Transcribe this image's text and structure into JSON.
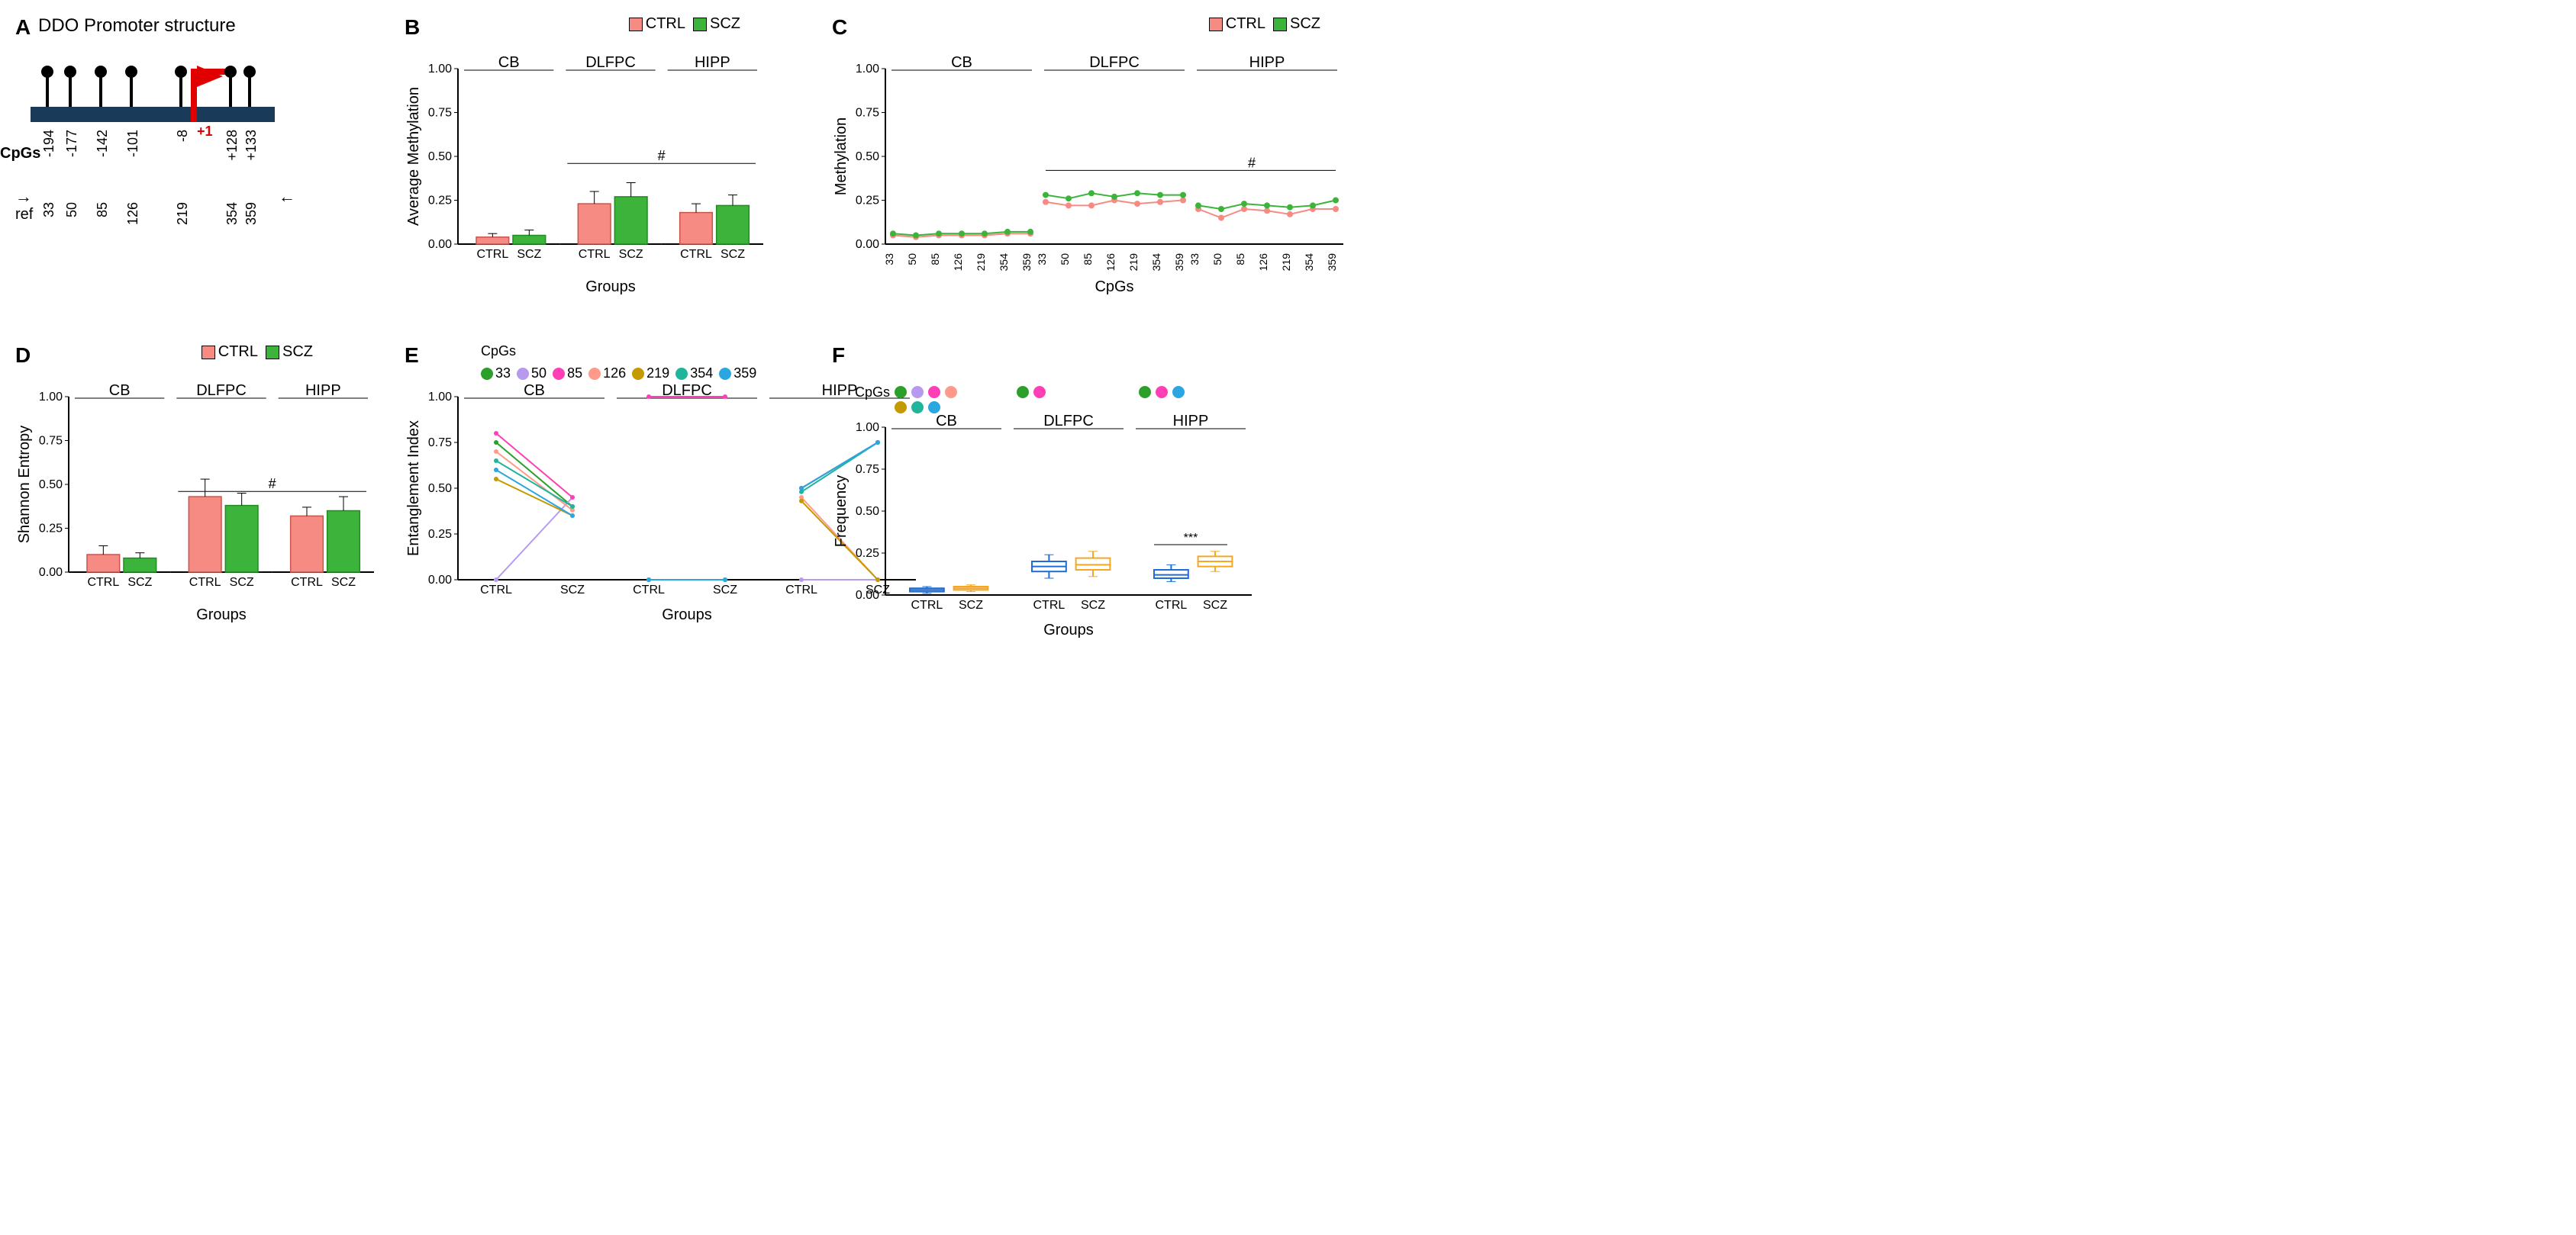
{
  "colors": {
    "ctrl": "#f58b82",
    "scz": "#3cb43c",
    "ctrl_stroke": "#c9544c",
    "scz_stroke": "#228b22",
    "ctrl_box": "#1e6dd6",
    "scz_box": "#f5a623"
  },
  "cpg_colors": {
    "33": "#2aa02a",
    "50": "#b799f0",
    "85": "#ff3fb5",
    "126": "#ff9a8b",
    "219": "#c49a00",
    "354": "#1fb59a",
    "359": "#2aa7e0"
  },
  "regions": [
    "CB",
    "DLFPC",
    "HIPP"
  ],
  "groups": [
    "CTRL",
    "SCZ"
  ],
  "cpg_sites": [
    "33",
    "50",
    "85",
    "126",
    "219",
    "354",
    "359"
  ],
  "panelA": {
    "label": "A",
    "title": "DDO Promoter structure",
    "cpg_positions": [
      "-194",
      "-177",
      "-142",
      "-101",
      "-8",
      "+128",
      "+133"
    ],
    "ref_positions": [
      "33",
      "50",
      "85",
      "126",
      "219",
      "354",
      "359"
    ],
    "tss": "+1",
    "cpgs_label": "CpGs",
    "ref_label": "ref"
  },
  "panelB": {
    "label": "B",
    "ylabel": "Average Methylation",
    "xlabel": "Groups",
    "ylim": [
      0,
      1
    ],
    "yticks": [
      0.0,
      0.25,
      0.5,
      0.75,
      1.0
    ],
    "bars": [
      {
        "region": "CB",
        "group": "CTRL",
        "value": 0.04,
        "sd": 0.02
      },
      {
        "region": "CB",
        "group": "SCZ",
        "value": 0.05,
        "sd": 0.03
      },
      {
        "region": "DLFPC",
        "group": "CTRL",
        "value": 0.23,
        "sd": 0.07
      },
      {
        "region": "DLFPC",
        "group": "SCZ",
        "value": 0.27,
        "sd": 0.08
      },
      {
        "region": "HIPP",
        "group": "CTRL",
        "value": 0.18,
        "sd": 0.05
      },
      {
        "region": "HIPP",
        "group": "SCZ",
        "value": 0.22,
        "sd": 0.06
      }
    ],
    "annot": "#"
  },
  "panelC": {
    "label": "C",
    "ylabel": "Methylation",
    "xlabel": "CpGs",
    "ylim": [
      0,
      1
    ],
    "yticks": [
      0.0,
      0.25,
      0.5,
      0.75,
      1.0
    ],
    "lines": {
      "CB": {
        "CTRL": [
          0.05,
          0.04,
          0.05,
          0.05,
          0.05,
          0.06,
          0.06
        ],
        "SCZ": [
          0.06,
          0.05,
          0.06,
          0.06,
          0.06,
          0.07,
          0.07
        ]
      },
      "DLFPC": {
        "CTRL": [
          0.24,
          0.22,
          0.22,
          0.25,
          0.23,
          0.24,
          0.25
        ],
        "SCZ": [
          0.28,
          0.26,
          0.29,
          0.27,
          0.29,
          0.28,
          0.28
        ]
      },
      "HIPP": {
        "CTRL": [
          0.2,
          0.15,
          0.2,
          0.19,
          0.17,
          0.2,
          0.2
        ],
        "SCZ": [
          0.22,
          0.2,
          0.23,
          0.22,
          0.21,
          0.22,
          0.25
        ]
      }
    },
    "annot": "#"
  },
  "panelD": {
    "label": "D",
    "ylabel": "Shannon Entropy",
    "xlabel": "Groups",
    "ylim": [
      0,
      1
    ],
    "yticks": [
      0.0,
      0.25,
      0.5,
      0.75,
      1.0
    ],
    "bars": [
      {
        "region": "CB",
        "group": "CTRL",
        "value": 0.1,
        "sd": 0.05
      },
      {
        "region": "CB",
        "group": "SCZ",
        "value": 0.08,
        "sd": 0.03
      },
      {
        "region": "DLFPC",
        "group": "CTRL",
        "value": 0.43,
        "sd": 0.1
      },
      {
        "region": "DLFPC",
        "group": "SCZ",
        "value": 0.38,
        "sd": 0.07
      },
      {
        "region": "HIPP",
        "group": "CTRL",
        "value": 0.32,
        "sd": 0.05
      },
      {
        "region": "HIPP",
        "group": "SCZ",
        "value": 0.35,
        "sd": 0.08
      }
    ],
    "annot": "#"
  },
  "panelE": {
    "label": "E",
    "ylabel": "Entanglement Index",
    "xlabel": "Groups",
    "ylim": [
      0,
      1
    ],
    "yticks": [
      0.0,
      0.25,
      0.5,
      0.75,
      1.0
    ],
    "legend_label": "CpGs",
    "lines": {
      "CB": {
        "33": [
          0.75,
          0.4
        ],
        "50": [
          0.0,
          0.45
        ],
        "85": [
          0.8,
          0.45
        ],
        "126": [
          0.7,
          0.38
        ],
        "219": [
          0.55,
          0.35
        ],
        "354": [
          0.65,
          0.4
        ],
        "359": [
          0.6,
          0.35
        ]
      },
      "DLFPC": {
        "33": [
          0.0,
          0.0
        ],
        "50": [
          0.0,
          0.0
        ],
        "85": [
          1.0,
          1.0
        ],
        "126": [
          0.0,
          0.0
        ],
        "219": [
          0.0,
          0.0
        ],
        "354": [
          0.0,
          0.0
        ],
        "359": [
          0.0,
          0.0
        ]
      },
      "HIPP": {
        "33": [
          0.5,
          0.75
        ],
        "50": [
          0.0,
          0.0
        ],
        "85": [
          0.5,
          0.75
        ],
        "126": [
          0.45,
          0.0
        ],
        "219": [
          0.43,
          0.0
        ],
        "354": [
          0.48,
          0.75
        ],
        "359": [
          0.5,
          0.75
        ]
      }
    }
  },
  "panelF": {
    "label": "F",
    "ylabel": "Frequency",
    "xlabel": "Groups",
    "legend_label": "CpGs",
    "ylim": [
      0,
      1
    ],
    "yticks": [
      0.0,
      0.25,
      0.5,
      0.75,
      1.0
    ],
    "cpg_shown": {
      "CB": [
        "33",
        "50",
        "85",
        "126",
        "219",
        "354",
        "359"
      ],
      "DLFPC": [
        "33",
        "85"
      ],
      "HIPP": [
        "33",
        "85",
        "359"
      ]
    },
    "boxes": [
      {
        "region": "CB",
        "group": "CTRL",
        "q1": 0.02,
        "med": 0.03,
        "q3": 0.04,
        "lo": 0.01,
        "hi": 0.05
      },
      {
        "region": "CB",
        "group": "SCZ",
        "q1": 0.03,
        "med": 0.04,
        "q3": 0.05,
        "lo": 0.02,
        "hi": 0.06
      },
      {
        "region": "DLFPC",
        "group": "CTRL",
        "q1": 0.14,
        "med": 0.17,
        "q3": 0.2,
        "lo": 0.1,
        "hi": 0.24
      },
      {
        "region": "DLFPC",
        "group": "SCZ",
        "q1": 0.15,
        "med": 0.18,
        "q3": 0.22,
        "lo": 0.11,
        "hi": 0.26
      },
      {
        "region": "HIPP",
        "group": "CTRL",
        "q1": 0.1,
        "med": 0.12,
        "q3": 0.15,
        "lo": 0.08,
        "hi": 0.18
      },
      {
        "region": "HIPP",
        "group": "SCZ",
        "q1": 0.17,
        "med": 0.2,
        "q3": 0.23,
        "lo": 0.14,
        "hi": 0.26
      }
    ],
    "annot": "***"
  },
  "legend_labels": {
    "ctrl": "CTRL",
    "scz": "SCZ"
  }
}
